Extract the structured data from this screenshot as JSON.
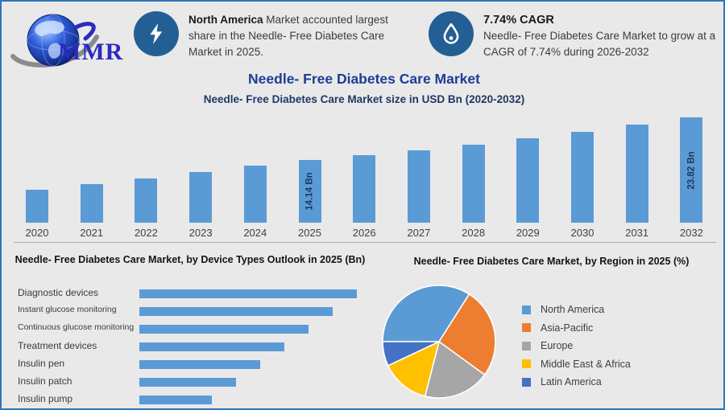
{
  "colors": {
    "background": "#E9E9E9",
    "frame_border": "#2E75B6",
    "bar": "#5B9BD5",
    "icon_circle": "#235F94",
    "title": "#1E3C96",
    "subtitle": "#1F3864"
  },
  "logo": {
    "brand": "MMR",
    "icon": "globe-swoosh-icon"
  },
  "callouts": [
    {
      "icon": "lightning-icon",
      "highlight": "North America",
      "text": "Market accounted largest share in the Needle- Free Diabetes Care Market in 2025."
    },
    {
      "icon": "droplet-icon",
      "highlight": "7.74% CAGR",
      "text": "Needle- Free Diabetes Care Market to grow at a CAGR of 7.74% during 2026-2032"
    }
  ],
  "page_title": "Needle- Free Diabetes Care Market",
  "page_subtitle": "Needle- Free Diabetes Care Market size in USD Bn (2020-2032)",
  "chart_data": [
    {
      "type": "bar",
      "title": "Needle- Free Diabetes Care Market size in USD Bn (2020-2032)",
      "categories": [
        "2020",
        "2021",
        "2022",
        "2023",
        "2024",
        "2025",
        "2026",
        "2027",
        "2028",
        "2029",
        "2030",
        "2031",
        "2032"
      ],
      "values": [
        7.45,
        8.7,
        10.0,
        11.45,
        12.9,
        14.14,
        15.23,
        16.41,
        17.68,
        19.05,
        20.52,
        22.11,
        23.82
      ],
      "unit": "USD Bn",
      "data_labels": {
        "2025": "14.14 Bn",
        "2032": "23.82 Bn"
      },
      "xlabel": "",
      "ylabel": "",
      "ylim": [
        0,
        25
      ],
      "grid": false,
      "legend": false,
      "note": "only 2025 and 2032 carry data labels; other values estimated from bar heights"
    },
    {
      "type": "bar",
      "orientation": "horizontal",
      "title": "Needle- Free Diabetes Care Market, by Device Types Outlook in 2025 (Bn)",
      "categories": [
        "Diagnostic devices",
        "Instant glucose monitoring",
        "Continuous glucose monitoring",
        "Treatment devices",
        "Insulin pen",
        "Insulin patch",
        "Insulin pump"
      ],
      "values": [
        3.0,
        2.67,
        2.33,
        2.0,
        1.67,
        1.33,
        1.0
      ],
      "unit": "Bn",
      "xlabel": "",
      "ylabel": "",
      "xlim": [
        0,
        3.2
      ],
      "grid": false,
      "legend": false,
      "note": "no data labels shown; values estimated from relative bar lengths"
    },
    {
      "type": "pie",
      "title": "Needle- Free Diabetes Care Market, by Region in 2025 (%)",
      "slices": [
        {
          "label": "North America",
          "value": 34,
          "color": "#5B9BD5"
        },
        {
          "label": "Asia-Pacific",
          "value": 26,
          "color": "#ED7D31"
        },
        {
          "label": "Europe",
          "value": 19,
          "color": "#A6A6A6"
        },
        {
          "label": "Middle East & Africa",
          "value": 14,
          "color": "#FFC000"
        },
        {
          "label": "Latin America",
          "value": 7,
          "color": "#4472C4"
        }
      ],
      "start_angle_deg": 270,
      "legend_position": "right",
      "note": "percentages estimated from slice angles"
    }
  ]
}
